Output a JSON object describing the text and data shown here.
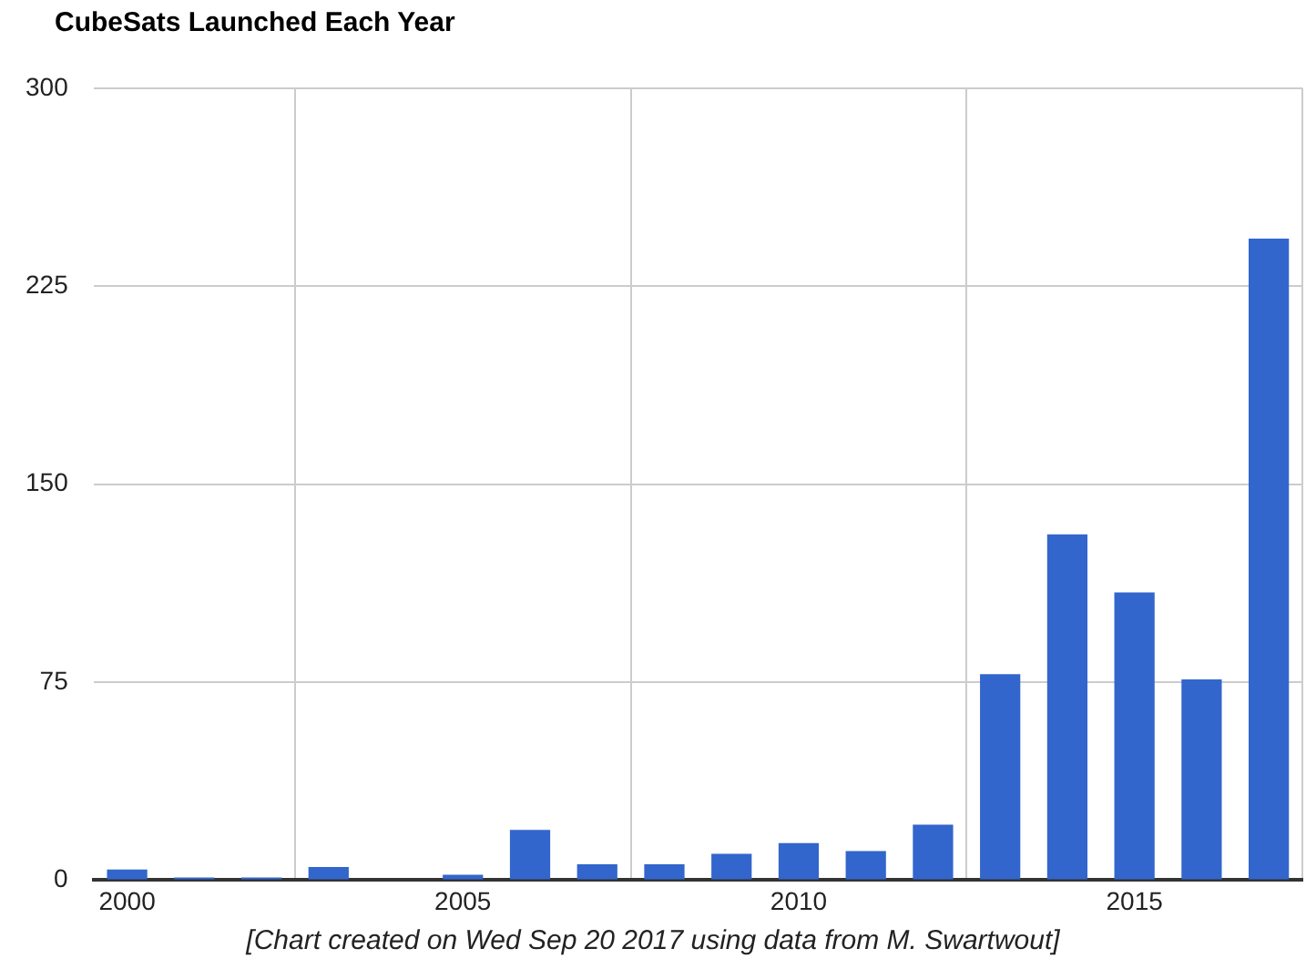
{
  "chart_data": {
    "type": "bar",
    "title": "CubeSats Launched Each Year",
    "x": [
      2000,
      2001,
      2002,
      2003,
      2004,
      2005,
      2006,
      2007,
      2008,
      2009,
      2010,
      2011,
      2012,
      2013,
      2014,
      2015,
      2016,
      2017
    ],
    "values": [
      4,
      1,
      1,
      5,
      0,
      2,
      19,
      6,
      6,
      10,
      14,
      11,
      21,
      78,
      131,
      109,
      76,
      243
    ],
    "color": "#3366cc",
    "xlim": [
      1999.5,
      2017.5
    ],
    "xticks": [
      2000,
      2005,
      2010,
      2015
    ],
    "ylim": [
      0,
      300
    ],
    "yticks": [
      0,
      75,
      150,
      225,
      300
    ],
    "grid": true,
    "legend": false,
    "annotations": [
      "[Chart created on Wed Sep 20 2017 using data from M. Swartwout]"
    ]
  }
}
